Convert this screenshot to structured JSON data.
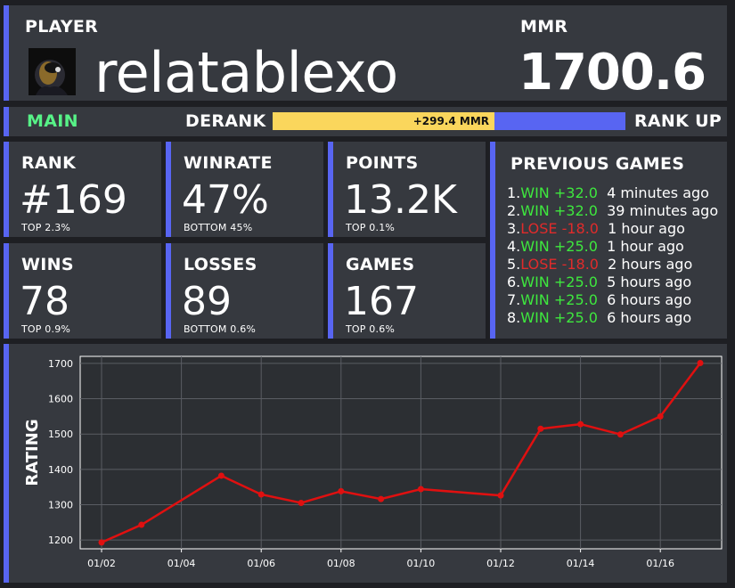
{
  "header": {
    "player_label": "PLAYER",
    "player_name": "relatablexo",
    "mmr_label": "MMR",
    "mmr_value": "1700.6"
  },
  "rank_progress": {
    "current_tier": "MAIN",
    "derank_label": "DERANK",
    "bar_text": "+299.4 MMR",
    "rankup_label": "RANK UP",
    "progress_fraction": 0.63
  },
  "stats": [
    {
      "label": "RANK",
      "value": "#169",
      "sub": "TOP 2.3%"
    },
    {
      "label": "WINRATE",
      "value": "47%",
      "sub": "BOTTOM 45%"
    },
    {
      "label": "POINTS",
      "value": "13.2K",
      "sub": "TOP 0.1%"
    },
    {
      "label": "WINS",
      "value": "78",
      "sub": "TOP 0.9%"
    },
    {
      "label": "LOSSES",
      "value": "89",
      "sub": "BOTTOM 0.6%"
    },
    {
      "label": "GAMES",
      "value": "167",
      "sub": "TOP 0.6%"
    }
  ],
  "previous_games": {
    "title": "PREVIOUS GAMES",
    "games": [
      {
        "index": "1.",
        "result": "WIN",
        "delta": "+32.0",
        "time": "4 minutes ago"
      },
      {
        "index": "2.",
        "result": "WIN",
        "delta": "+32.0",
        "time": "39 minutes ago"
      },
      {
        "index": "3.",
        "result": "LOSE",
        "delta": "-18.0",
        "time": "1 hour ago"
      },
      {
        "index": "4.",
        "result": "WIN",
        "delta": "+25.0",
        "time": "1 hour ago"
      },
      {
        "index": "5.",
        "result": "LOSE",
        "delta": "-18.0",
        "time": "2 hours ago"
      },
      {
        "index": "6.",
        "result": "WIN",
        "delta": "+25.0",
        "time": "5 hours ago"
      },
      {
        "index": "7.",
        "result": "WIN",
        "delta": "+25.0",
        "time": "6 hours ago"
      },
      {
        "index": "8.",
        "result": "WIN",
        "delta": "+25.0",
        "time": "6 hours ago"
      }
    ]
  },
  "colors": {
    "accent": "#5865f2",
    "panel": "#36393f",
    "win": "#3ee83e",
    "lose": "#e02b2b",
    "bar_fill": "#fad65c",
    "tier": "#57f287",
    "line": "#e01010"
  },
  "chart_data": {
    "type": "line",
    "ylabel": "RATING",
    "xlabel": "",
    "x": [
      "01/02",
      "01/03",
      "01/04",
      "01/05",
      "01/06",
      "01/07",
      "01/08",
      "01/09",
      "01/10",
      "01/11",
      "01/12",
      "01/13",
      "01/14",
      "01/15",
      "01/16",
      "01/17"
    ],
    "xticks": [
      "01/02",
      "01/04",
      "01/06",
      "01/08",
      "01/10",
      "01/12",
      "01/14",
      "01/16"
    ],
    "series": [
      {
        "values": [
          1193,
          1243,
          null,
          1382,
          1329,
          1305,
          1338,
          1316,
          1344,
          null,
          1326,
          1515,
          1528,
          1499,
          1550,
          1701
        ]
      }
    ],
    "ylim": [
      1175,
      1720
    ],
    "yticks": [
      1200,
      1300,
      1400,
      1500,
      1600,
      1700
    ],
    "grid": true
  }
}
